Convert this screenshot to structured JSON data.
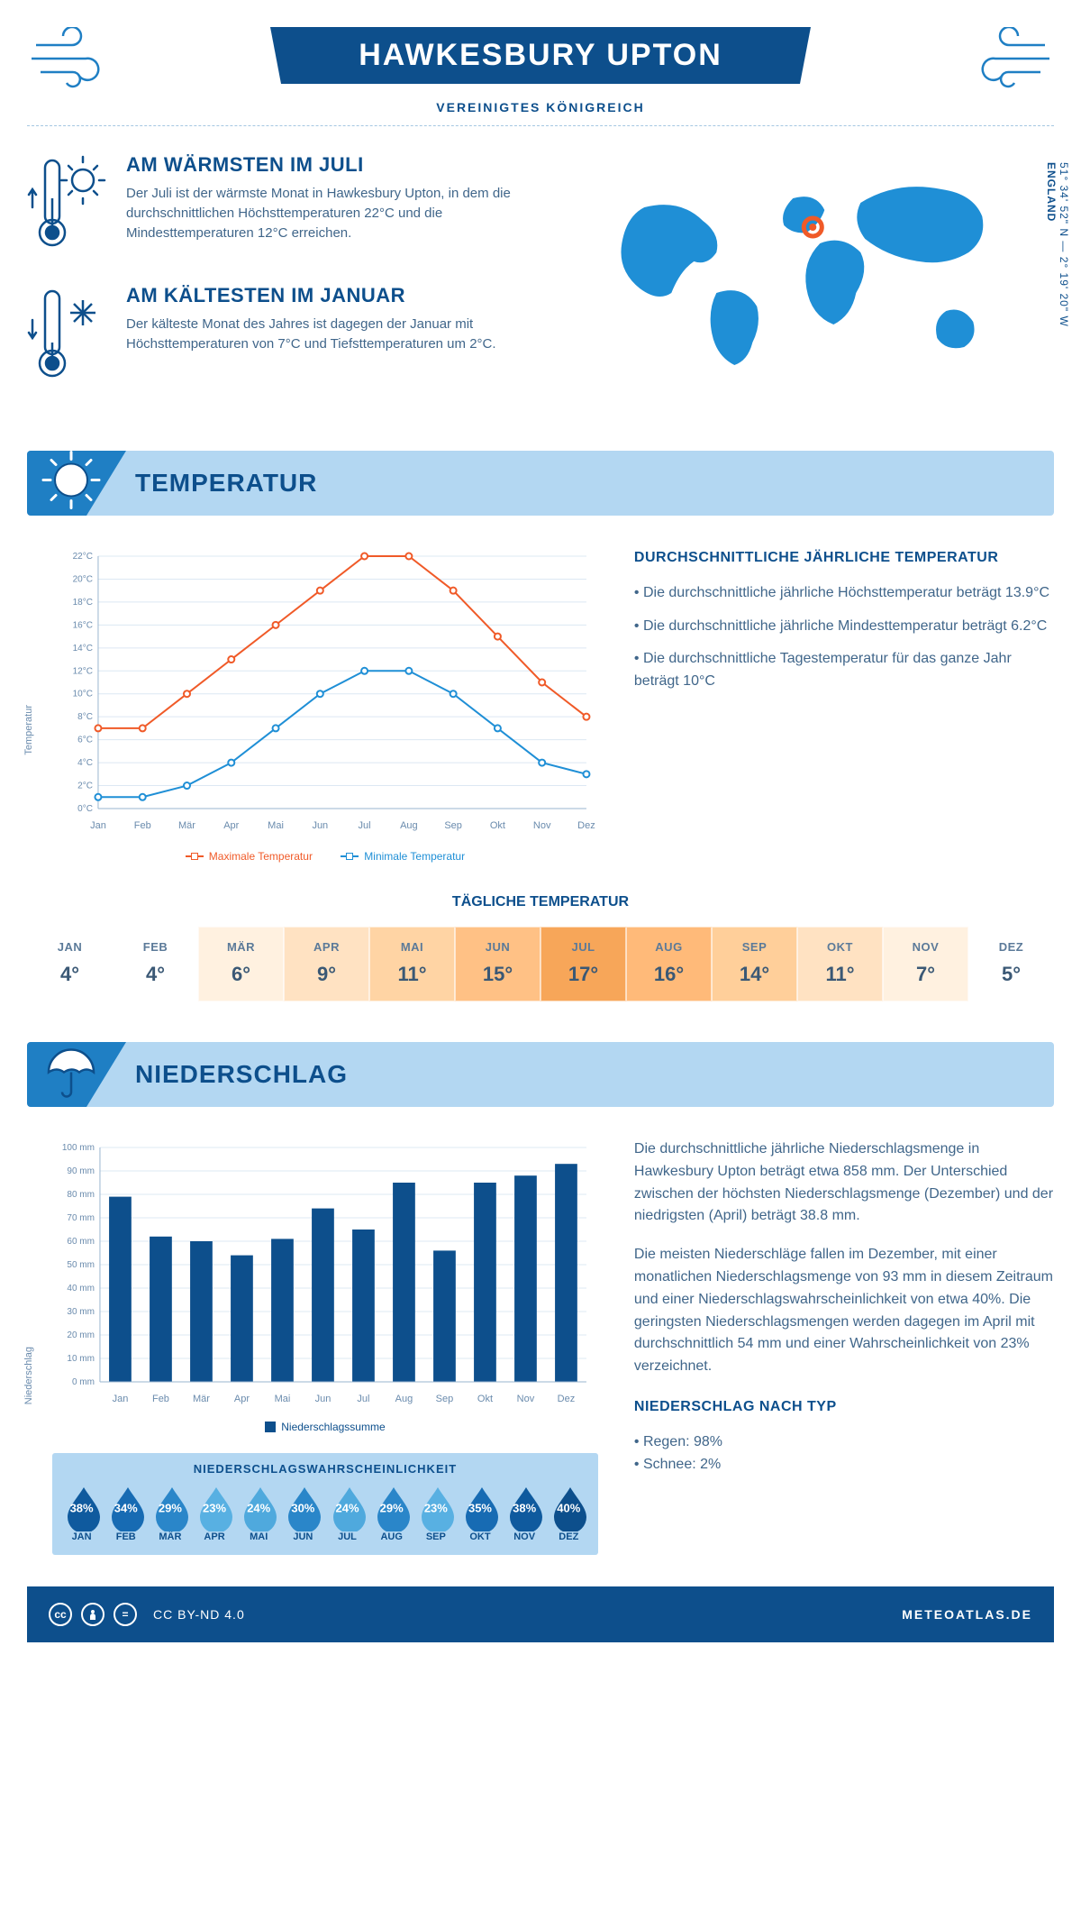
{
  "header": {
    "title": "HAWKESBURY UPTON",
    "subtitle": "VEREINIGTES KÖNIGREICH"
  },
  "coords": {
    "line1": "51° 34' 52\" N — 2° 19' 20\" W",
    "line2": "ENGLAND"
  },
  "facts": {
    "warm": {
      "title": "AM WÄRMSTEN IM JULI",
      "text": "Der Juli ist der wärmste Monat in Hawkesbury Upton, in dem die durchschnittlichen Höchsttemperaturen 22°C und die Mindesttemperaturen 12°C erreichen."
    },
    "cold": {
      "title": "AM KÄLTESTEN IM JANUAR",
      "text": "Der kälteste Monat des Jahres ist dagegen der Januar mit Höchsttemperaturen von 7°C und Tiefsttemperaturen um 2°C."
    }
  },
  "temperature": {
    "banner": "TEMPERATUR",
    "avg_title": "DURCHSCHNITTLICHE JÄHRLICHE TEMPERATUR",
    "bullets": [
      "• Die durchschnittliche jährliche Höchsttemperatur beträgt 13.9°C",
      "• Die durchschnittliche jährliche Mindesttemperatur beträgt 6.2°C",
      "• Die durchschnittliche Tagestemperatur für das ganze Jahr beträgt 10°C"
    ],
    "chart": {
      "type": "line",
      "months": [
        "Jan",
        "Feb",
        "Mär",
        "Apr",
        "Mai",
        "Jun",
        "Jul",
        "Aug",
        "Sep",
        "Okt",
        "Nov",
        "Dez"
      ],
      "max_series": {
        "label": "Maximale Temperatur",
        "color": "#f05a28",
        "values": [
          7,
          7,
          10,
          13,
          16,
          19,
          22,
          22,
          19,
          15,
          11,
          8
        ]
      },
      "min_series": {
        "label": "Minimale Temperatur",
        "color": "#1f8fd6",
        "values": [
          1,
          1,
          2,
          4,
          7,
          10,
          12,
          12,
          10,
          7,
          4,
          3
        ]
      },
      "ylabel": "Temperatur",
      "ylim": [
        0,
        22
      ],
      "ytick_step": 2,
      "grid_color": "#dce8f3",
      "background": "#ffffff",
      "line_width": 2,
      "marker": "circle-open",
      "marker_size": 5
    },
    "daily_title": "TÄGLICHE TEMPERATUR",
    "daily": {
      "months": [
        "JAN",
        "FEB",
        "MÄR",
        "APR",
        "MAI",
        "JUN",
        "JUL",
        "AUG",
        "SEP",
        "OKT",
        "NOV",
        "DEZ"
      ],
      "values": [
        "4°",
        "4°",
        "6°",
        "9°",
        "11°",
        "15°",
        "17°",
        "16°",
        "14°",
        "11°",
        "7°",
        "5°"
      ],
      "colors": [
        "#ffffff",
        "#ffffff",
        "#fff1e0",
        "#ffe2c2",
        "#ffd4a4",
        "#ffc185",
        "#f7a659",
        "#ffba79",
        "#ffcf9a",
        "#ffe2c2",
        "#fff1e0",
        "#ffffff"
      ]
    }
  },
  "precip": {
    "banner": "NIEDERSCHLAG",
    "chart": {
      "type": "bar",
      "months": [
        "Jan",
        "Feb",
        "Mär",
        "Apr",
        "Mai",
        "Jun",
        "Jul",
        "Aug",
        "Sep",
        "Okt",
        "Nov",
        "Dez"
      ],
      "values": [
        79,
        62,
        60,
        54,
        61,
        74,
        65,
        85,
        56,
        85,
        88,
        93
      ],
      "bar_color": "#0d4f8c",
      "ylabel": "Niederschlag",
      "ylim": [
        0,
        100
      ],
      "ytick_step": 10,
      "legend_label": "Niederschlagssumme",
      "grid_color": "#dce8f3",
      "bar_width": 0.55
    },
    "paras": [
      "Die durchschnittliche jährliche Niederschlagsmenge in Hawkesbury Upton beträgt etwa 858 mm. Der Unterschied zwischen der höchsten Niederschlagsmenge (Dezember) und der niedrigsten (April) beträgt 38.8 mm.",
      "Die meisten Niederschläge fallen im Dezember, mit einer monatlichen Niederschlagsmenge von 93 mm in diesem Zeitraum und einer Niederschlagswahrscheinlichkeit von etwa 40%. Die geringsten Niederschlagsmengen werden dagegen im April mit durchschnittlich 54 mm und einer Wahrscheinlichkeit von 23% verzeichnet."
    ],
    "by_type_title": "NIEDERSCHLAG NACH TYP",
    "by_type": [
      "• Regen: 98%",
      "• Schnee: 2%"
    ],
    "prob_title": "NIEDERSCHLAGSWAHRSCHEINLICHKEIT",
    "prob": {
      "months": [
        "JAN",
        "FEB",
        "MÄR",
        "APR",
        "MAI",
        "JUN",
        "JUL",
        "AUG",
        "SEP",
        "OKT",
        "NOV",
        "DEZ"
      ],
      "pct": [
        "38%",
        "34%",
        "29%",
        "23%",
        "24%",
        "30%",
        "24%",
        "29%",
        "23%",
        "35%",
        "38%",
        "40%"
      ],
      "colors": [
        "#0f5a9e",
        "#176bb3",
        "#2a86c9",
        "#58b0e2",
        "#4fa9dd",
        "#2a86c9",
        "#4fa9dd",
        "#2a86c9",
        "#58b0e2",
        "#176bb3",
        "#0f5a9e",
        "#0d4f8c"
      ]
    }
  },
  "footer": {
    "license": "CC BY-ND 4.0",
    "site": "METEOATLAS.DE"
  }
}
